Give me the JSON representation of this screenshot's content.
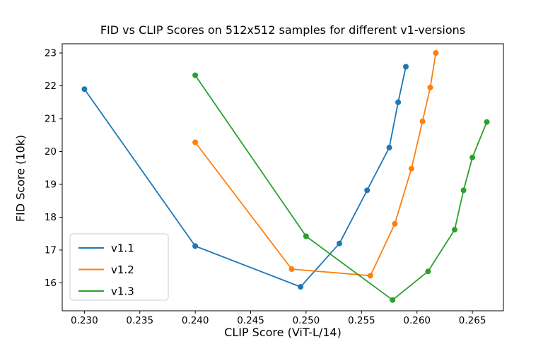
{
  "figure": {
    "background": "#ffffff",
    "text_color": "#000000",
    "spine_color": "#000000",
    "legend_border_color": "#cccccc"
  },
  "chart_data": {
    "type": "line",
    "title": "FID vs CLIP Scores on 512x512 samples for different v1-versions",
    "xlabel": "CLIP Score (ViT-L/14)",
    "ylabel": "FID Score (10k)",
    "xlim": [
      0.228,
      0.2678
    ],
    "ylim": [
      15.15,
      23.28
    ],
    "grid": false,
    "marker": "circle",
    "legend_position": "lower left inset",
    "xticks": [
      0.23,
      0.235,
      0.24,
      0.245,
      0.25,
      0.255,
      0.26,
      0.265
    ],
    "xtick_labels": [
      "0.230",
      "0.235",
      "0.240",
      "0.245",
      "0.250",
      "0.255",
      "0.260",
      "0.265"
    ],
    "yticks": [
      16,
      17,
      18,
      19,
      20,
      21,
      22,
      23
    ],
    "ytick_labels": [
      "16",
      "17",
      "18",
      "19",
      "20",
      "21",
      "22",
      "23"
    ],
    "series": [
      {
        "name": "v1.1",
        "color": "#1f77b4",
        "points": [
          [
            0.23,
            21.9
          ],
          [
            0.24,
            17.12
          ],
          [
            0.2495,
            15.88
          ],
          [
            0.253,
            17.2
          ],
          [
            0.2555,
            18.82
          ],
          [
            0.2575,
            20.12
          ],
          [
            0.2583,
            21.5
          ],
          [
            0.259,
            22.58
          ]
        ]
      },
      {
        "name": "v1.2",
        "color": "#ff7f0e",
        "points": [
          [
            0.24,
            20.28
          ],
          [
            0.2487,
            16.42
          ],
          [
            0.2558,
            16.22
          ],
          [
            0.258,
            17.8
          ],
          [
            0.2595,
            19.48
          ],
          [
            0.2605,
            20.92
          ],
          [
            0.2612,
            21.95
          ],
          [
            0.2617,
            23.0
          ]
        ]
      },
      {
        "name": "v1.3",
        "color": "#2ca02c",
        "points": [
          [
            0.24,
            22.32
          ],
          [
            0.25,
            17.42
          ],
          [
            0.2578,
            15.48
          ],
          [
            0.261,
            16.35
          ],
          [
            0.2634,
            17.62
          ],
          [
            0.2642,
            18.82
          ],
          [
            0.265,
            19.82
          ],
          [
            0.2663,
            20.9
          ]
        ]
      }
    ]
  }
}
